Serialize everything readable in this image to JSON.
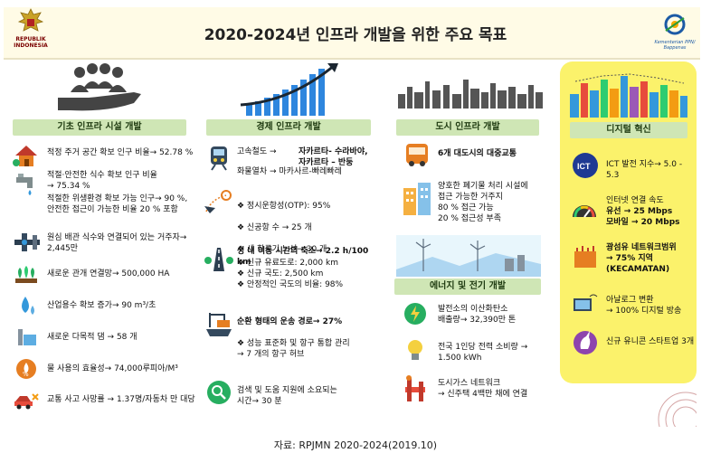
{
  "header": {
    "title": "2020-2024년 인프라 개발을 위한 주요 목표",
    "left_logo_text": "REPUBLIK INDONESIA",
    "right_logo_text": "Kementerian PPN/ Bappenas"
  },
  "col1": {
    "heading": "기초 인프라 시설 개발",
    "items": [
      "적정 주거 공간 확보 인구 비율→ 52.78 %",
      "적절·안전한 식수 확보 인구 비율\n→ 75.34 %",
      "적절한 위생환경 확보 가능 인구→ 90 %,\n안전한 접근이 가능한 비율 20 % 포함",
      "원심 배관 식수와 연결되어 있는 거주자→\n2,445만",
      "새로운 관개 연결망→ 500,000 HA",
      "산업용수 확보 증가→ 90 m³/초",
      "새로운 다목적 댐 → 58 개",
      "물 사용의 효율성→ 74,000루피아/M³",
      "교통 사고 사망률 → 1.37명/자동차 만 대당"
    ]
  },
  "col2": {
    "heading": "경제 인프라 개발",
    "rail": "고속철도 →",
    "rail_routes": "자카르타- 수라바야,\n자카르타 – 반둥",
    "freight": "화물열차 → 마카사르-빠레빠레",
    "airport_items": [
      "❖ 정시운항성(OTP): 95%",
      "❖ 신공항 수 → 25 개",
      "❖ 새 항공기 노선→ 30 개"
    ],
    "road_title": "성 내 이동 시간의 축소→ 2.2 h/100 km",
    "road_items": [
      "❖ 신규 유료도로: 2,000 km",
      "❖ 신규 국도: 2,500 km",
      "❖ 안정적인 국도의 비율: 98%"
    ],
    "ship_title": "순환 형태의 운송 경로→ 27%",
    "ship_items": "❖ 성능 표준화 및 항구 통합 관리\n→ 7 개의 항구 허브",
    "search": "검색 및 도움 지원에 소요되는\n시간→ 30 분"
  },
  "col3": {
    "heading": "도시 인프라 개발",
    "transit": "6개 대도시의 대중교통",
    "waste": "양호한 폐기물 처리 시설에\n접근 가능한 거주지\n80 % 접근 가능\n20 % 접근성 부족",
    "energy_heading": "에너지 및 전기 개발",
    "co2": "발전소의 이산화탄소\n배출량→ 32,390만 톤",
    "power": "전국 1인당 전력 소비량 →\n1.500 kWh",
    "gas": "도시가스 네트워크\n→ 신주택 4백만 채에 연결"
  },
  "col4": {
    "heading": "디지털 혁신",
    "ict": "ICT 발전 지수→ 5.0 - 5.3",
    "internet_title": "인터넷 연결 속도",
    "internet_fixed": "유선      → 25 Mbps",
    "internet_mobile": "모바일    → 20 Mbps",
    "broadband": "광섬유 네트워크범위\n→ 75% 지역(KECAMATAN)",
    "analog": "아날로그 변환\n→ 100% 디지털 방송",
    "unicorn": "신규 유니콘 스타트업 3개",
    "ict_label": "ICT"
  },
  "caption": "자료: RPJMN 2020-2024(2019.10)"
}
